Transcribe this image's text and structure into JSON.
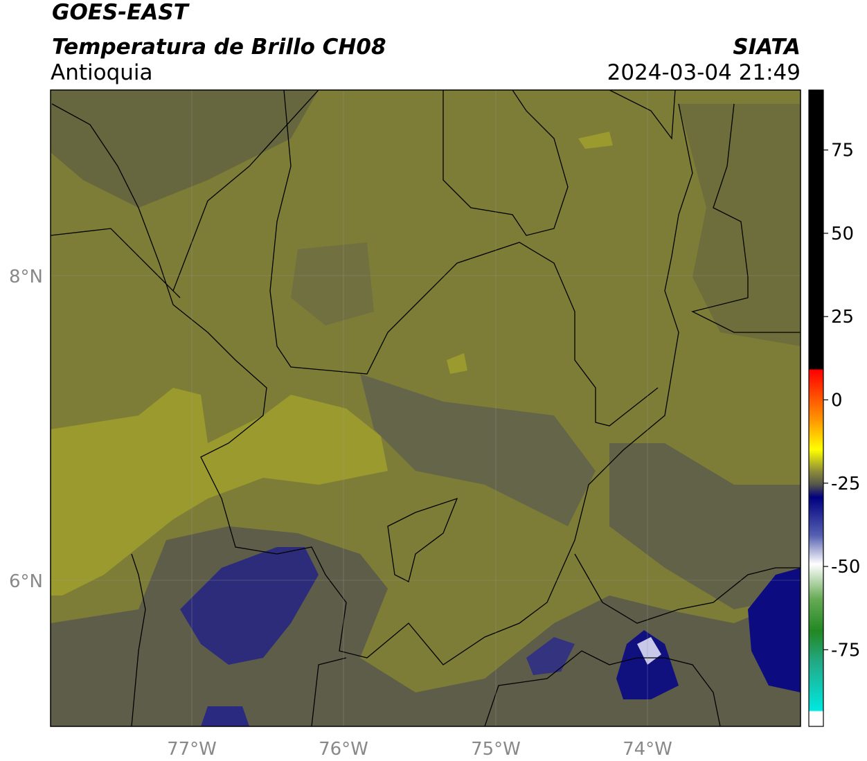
{
  "header": {
    "title": "GOES-EAST",
    "subtitle": "Temperatura de Brillo CH08",
    "region": "Antioquia",
    "source": "SIATA",
    "datetime": "2024-03-04 21:49"
  },
  "map": {
    "lat_ticks": [
      "8°N",
      "6°N"
    ],
    "lon_ticks": [
      "77°W",
      "76°W",
      "75°W",
      "74°W"
    ]
  },
  "colorbar": {
    "lim": [
      -98,
      93
    ],
    "ticks": [
      75,
      50,
      25,
      0,
      -25,
      -50,
      -75
    ]
  }
}
